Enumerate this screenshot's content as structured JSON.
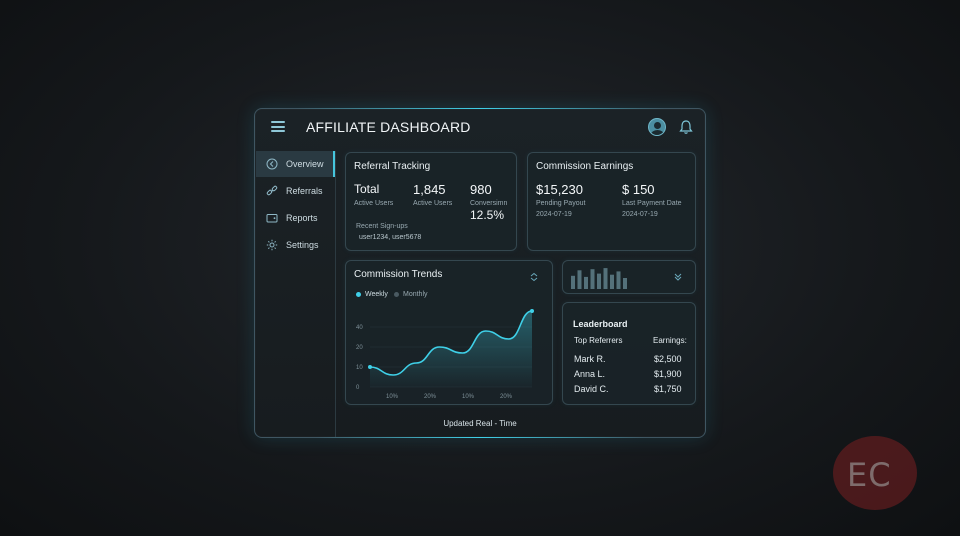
{
  "header": {
    "title": "AFFILIATE DASHBOARD"
  },
  "sidebar": {
    "items": [
      {
        "label": "Overview",
        "icon": "arrow-left-icon",
        "active": true
      },
      {
        "label": "Referrals",
        "icon": "link-icon"
      },
      {
        "label": "Reports",
        "icon": "wallet-icon"
      },
      {
        "label": "Settings",
        "icon": "gear-icon"
      }
    ]
  },
  "referral_tracking": {
    "title": "Referral Tracking",
    "stats": [
      {
        "value": "Total",
        "label": "Active Users"
      },
      {
        "value": "1,845",
        "label": "Active Users"
      },
      {
        "value": "980",
        "label": "Conversimn",
        "extra": "12.5%"
      }
    ],
    "recent_label": "Recent Sign-ups",
    "recent_users": "user1234, user5678"
  },
  "commission_earnings": {
    "title": "Commission Earnings",
    "items": [
      {
        "value": "$15,230",
        "label": "Pending Payout",
        "date": "2024-07-19"
      },
      {
        "value": "$ 150",
        "label": "Last Payment Date",
        "date": "2024-07-19"
      }
    ]
  },
  "commission_trends": {
    "title": "Commission Trends",
    "legend": [
      {
        "label": "Weekly",
        "color": "#3fd0e8",
        "active": true
      },
      {
        "label": "Monthly",
        "color": "#5a6a72"
      }
    ]
  },
  "chart_data": {
    "type": "area",
    "title": "Commission Trends",
    "series": [
      {
        "name": "Weekly",
        "values": [
          10,
          6,
          12,
          20,
          17,
          28,
          24,
          38
        ]
      }
    ],
    "x": [
      0,
      1,
      2,
      3,
      4,
      5,
      6,
      7
    ],
    "xticks": [
      "10%",
      "20%",
      "10%",
      "20%"
    ],
    "yticks": [
      "0",
      "10",
      "20",
      "40"
    ],
    "ylim": [
      0,
      40
    ]
  },
  "leaderboard": {
    "title": "Leaderboard",
    "col_left": "Top Referrers",
    "col_right": "Earnings:",
    "rows": [
      {
        "name": "Mark R.",
        "amount": "$2,500"
      },
      {
        "name": "Anna L.",
        "amount": "$1,900"
      },
      {
        "name": "David C.",
        "amount": "$1,750"
      }
    ]
  },
  "mini_bars": {
    "values": [
      0.6,
      0.85,
      0.55,
      0.9,
      0.7,
      0.95,
      0.65,
      0.8,
      0.5
    ]
  },
  "footer": {
    "text": "Updated Real - Time"
  },
  "watermark": {
    "text": "EC"
  }
}
